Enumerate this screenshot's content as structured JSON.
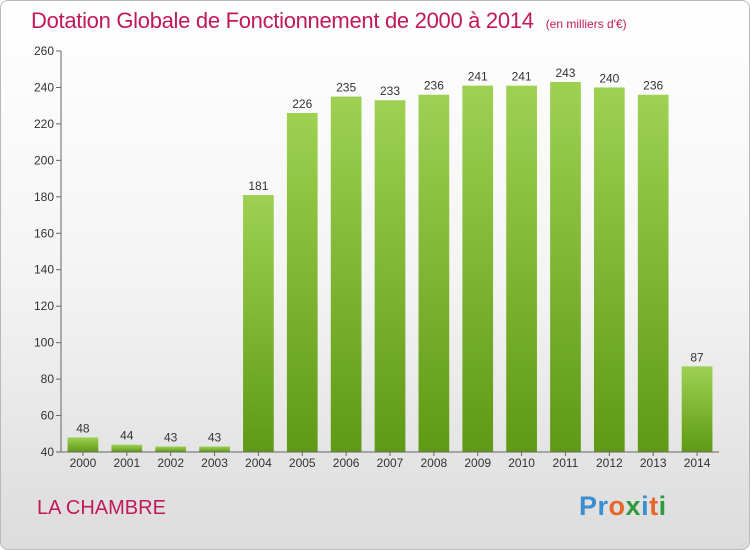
{
  "header": {
    "title": "Dotation Globale de Fonctionnement de 2000 à 2014",
    "unit_note": "(en milliers d'€)"
  },
  "footer": {
    "commune": "LA CHAMBRE"
  },
  "logo": {
    "text": "Proxiti",
    "letters": [
      "P",
      "r",
      "o",
      "x",
      "i",
      "t",
      "i"
    ],
    "colors": [
      "#3b8fd0",
      "#3b8fd0",
      "#e6672a",
      "#2e9b3e",
      "#3b8fd0",
      "#e6672a",
      "#2e9b3e"
    ]
  },
  "chart_data": {
    "type": "bar",
    "categories": [
      "2000",
      "2001",
      "2002",
      "2003",
      "2004",
      "2005",
      "2006",
      "2007",
      "2008",
      "2009",
      "2010",
      "2011",
      "2012",
      "2013",
      "2014"
    ],
    "values": [
      48,
      44,
      43,
      43,
      181,
      226,
      235,
      233,
      236,
      241,
      241,
      243,
      240,
      236,
      87
    ],
    "title": "Dotation Globale de Fonctionnement de 2000 à 2014",
    "subtitle": "(en milliers d'€)",
    "xlabel": "",
    "ylabel": "",
    "ylim": [
      40,
      260
    ],
    "yticks": [
      40,
      60,
      80,
      100,
      120,
      140,
      160,
      180,
      200,
      220,
      240,
      260
    ],
    "grid": false,
    "colors": {
      "bar_top": "#9ed152",
      "bar_bottom": "#5f9a14",
      "axis": "#666666"
    }
  }
}
